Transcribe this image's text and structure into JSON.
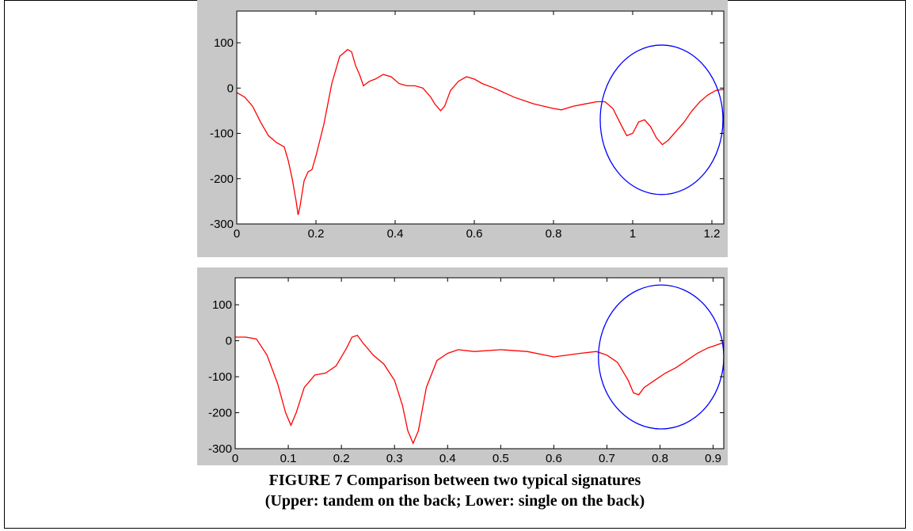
{
  "caption": {
    "line1": "FIGURE 7 Comparison between two typical signatures",
    "line2": "(Upper: tandem on the back; Lower: single on the back)"
  },
  "colors": {
    "line": "#ff0000",
    "circle": "#0000ff",
    "panel_bg": "#c8c8c8",
    "axes_bg": "#ffffff"
  },
  "chart_data": [
    {
      "type": "line",
      "xlim": [
        0,
        1.23
      ],
      "ylim": [
        -300,
        170
      ],
      "x_ticks": [
        0,
        0.2,
        0.4,
        0.6,
        0.8,
        1,
        1.2
      ],
      "x_tick_labels": [
        "0",
        "0.2",
        "0.4",
        "0.6",
        "0.8",
        "1",
        "1.2"
      ],
      "y_ticks": [
        100,
        0,
        -100,
        -200,
        -300
      ],
      "y_tick_labels": [
        "100",
        "0",
        "-100",
        "-200",
        "-300"
      ],
      "grid": false,
      "series": [
        {
          "x": [
            0,
            0.02,
            0.04,
            0.06,
            0.08,
            0.1,
            0.12,
            0.13,
            0.14,
            0.15,
            0.155,
            0.16,
            0.17,
            0.18,
            0.19,
            0.2,
            0.22,
            0.24,
            0.26,
            0.28,
            0.29,
            0.3,
            0.31,
            0.32,
            0.335,
            0.35,
            0.37,
            0.39,
            0.41,
            0.43,
            0.45,
            0.47,
            0.49,
            0.5,
            0.515,
            0.525,
            0.54,
            0.56,
            0.58,
            0.6,
            0.62,
            0.65,
            0.7,
            0.75,
            0.8,
            0.82,
            0.85,
            0.88,
            0.91,
            0.93,
            0.95,
            0.97,
            0.985,
            1,
            1.015,
            1.03,
            1.045,
            1.06,
            1.075,
            1.09,
            1.11,
            1.13,
            1.15,
            1.17,
            1.19,
            1.21,
            1.23
          ],
          "y": [
            -10,
            -20,
            -40,
            -75,
            -105,
            -120,
            -130,
            -160,
            -200,
            -250,
            -280,
            -260,
            -205,
            -185,
            -180,
            -150,
            -80,
            10,
            70,
            85,
            80,
            50,
            30,
            5,
            15,
            20,
            30,
            25,
            10,
            5,
            5,
            0,
            -20,
            -35,
            -50,
            -40,
            -5,
            15,
            25,
            20,
            10,
            0,
            -20,
            -35,
            -45,
            -48,
            -40,
            -35,
            -30,
            -30,
            -45,
            -80,
            -105,
            -100,
            -75,
            -70,
            -85,
            -110,
            -125,
            -115,
            -95,
            -75,
            -50,
            -30,
            -15,
            -5,
            -3
          ]
        }
      ],
      "annotations": [
        {
          "type": "ellipse",
          "cx": 1.073,
          "cy": -70,
          "rx": 0.155,
          "ry": 165
        }
      ]
    },
    {
      "type": "line",
      "xlim": [
        0,
        0.92
      ],
      "ylim": [
        -300,
        175
      ],
      "x_ticks": [
        0,
        0.1,
        0.2,
        0.3,
        0.4,
        0.5,
        0.6,
        0.7,
        0.8,
        0.9
      ],
      "x_tick_labels": [
        "0",
        "0.1",
        "0.2",
        "0.3",
        "0.4",
        "0.5",
        "0.6",
        "0.7",
        "0.8",
        "0.9"
      ],
      "y_ticks": [
        100,
        0,
        -100,
        -200,
        -300
      ],
      "y_tick_labels": [
        "100",
        "0",
        "-100",
        "-200",
        "-300"
      ],
      "grid": false,
      "series": [
        {
          "x": [
            0,
            0.02,
            0.04,
            0.06,
            0.08,
            0.095,
            0.105,
            0.115,
            0.13,
            0.15,
            0.17,
            0.19,
            0.21,
            0.22,
            0.23,
            0.24,
            0.26,
            0.28,
            0.3,
            0.315,
            0.325,
            0.335,
            0.345,
            0.36,
            0.38,
            0.4,
            0.42,
            0.45,
            0.5,
            0.55,
            0.6,
            0.65,
            0.68,
            0.7,
            0.72,
            0.74,
            0.75,
            0.76,
            0.77,
            0.79,
            0.81,
            0.83,
            0.85,
            0.87,
            0.89,
            0.91,
            0.92
          ],
          "y": [
            10,
            10,
            5,
            -40,
            -120,
            -200,
            -235,
            -200,
            -130,
            -95,
            -90,
            -70,
            -20,
            10,
            15,
            -5,
            -40,
            -65,
            -110,
            -180,
            -250,
            -285,
            -250,
            -130,
            -55,
            -35,
            -25,
            -30,
            -25,
            -30,
            -45,
            -35,
            -30,
            -40,
            -60,
            -110,
            -145,
            -150,
            -130,
            -110,
            -90,
            -75,
            -55,
            -35,
            -20,
            -10,
            -5
          ]
        }
      ],
      "annotations": [
        {
          "type": "ellipse",
          "cx": 0.802,
          "cy": -45,
          "rx": 0.118,
          "ry": 200
        }
      ]
    }
  ]
}
